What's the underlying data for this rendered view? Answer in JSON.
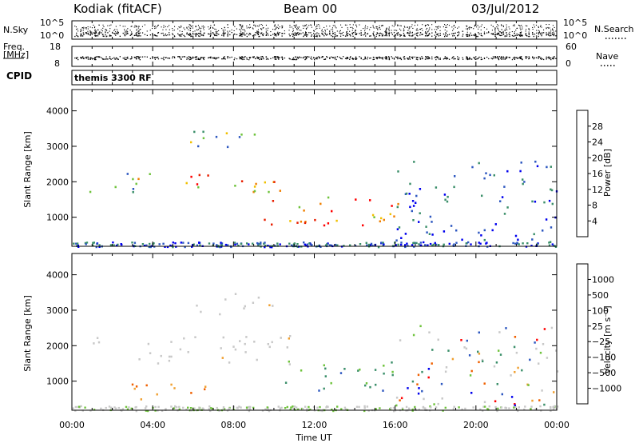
{
  "header": {
    "station": "Kodiak (fitACF)",
    "beam": "Beam 00",
    "date": "03/Jul/2012"
  },
  "noise_panel": {
    "left_label": "N.Sky",
    "right_label": "N.Search",
    "left_ticks": [
      "10^5",
      "10^0"
    ],
    "right_ticks": [
      "10^5",
      "10^0"
    ]
  },
  "freq_panel": {
    "left_label_1": "Freq.",
    "left_label_2": "[MHz]",
    "right_label": "Nave",
    "left_ticks": [
      "18",
      "8"
    ],
    "right_ticks": [
      "60",
      "0"
    ]
  },
  "cpid": {
    "label": "CPID",
    "value": "themis 3300 RF"
  },
  "chart_data": [
    {
      "type": "heatmap",
      "quantity": "Power",
      "ylabel": "Slant Range [km]",
      "xlabel": "",
      "y_ticks": [
        "1000",
        "2000",
        "3000",
        "4000"
      ],
      "ylim": [
        180,
        4600
      ],
      "colorbar_label": "Power [dB]",
      "colorbar_ticks": [
        "4",
        "8",
        "12",
        "16",
        "20",
        "24",
        "28"
      ],
      "colorbar_range": [
        0,
        32
      ],
      "colors": [
        "#0000ee",
        "#2d57c0",
        "#3b8f6a",
        "#6fc33c",
        "#f0c000",
        "#f08000",
        "#e81e00",
        "#ff0000"
      ],
      "echo_regions_hours_km": [
        {
          "t0": 0.8,
          "t1": 3.0,
          "r0": 1700,
          "r1": 2300,
          "level": "mid"
        },
        {
          "t0": 3.0,
          "t1": 7.0,
          "r0": 1800,
          "r1": 2300,
          "level": "high"
        },
        {
          "t0": 7.0,
          "t1": 10.5,
          "r0": 1600,
          "r1": 2300,
          "level": "high"
        },
        {
          "t0": 9.5,
          "t1": 16.5,
          "r0": 700,
          "r1": 1600,
          "level": "high"
        },
        {
          "t0": 5.8,
          "t1": 10.0,
          "r0": 2900,
          "r1": 3500,
          "level": "mid"
        },
        {
          "t0": 16.0,
          "t1": 24.0,
          "r0": 300,
          "r1": 2600,
          "level": "low"
        }
      ]
    },
    {
      "type": "heatmap",
      "quantity": "Velocity",
      "ylabel": "Slant Range [km]",
      "xlabel": "Time UT",
      "y_ticks": [
        "1000",
        "2000",
        "3000",
        "4000"
      ],
      "ylim": [
        180,
        4600
      ],
      "x_ticks": [
        "00:00",
        "04:00",
        "08:00",
        "12:00",
        "16:00",
        "20:00",
        "00:00"
      ],
      "xlim_hours": [
        0,
        24
      ],
      "colorbar_label": "Velocity [m s⁻¹]",
      "colorbar_ticks": [
        "1000",
        "500",
        "100",
        "25",
        "−25",
        "−100",
        "−500",
        "−1000"
      ],
      "colors": [
        "#ff0000",
        "#f06000",
        "#f0a030",
        "#c8c8c8",
        "#c8c8c8",
        "#6fc33c",
        "#3b8f6a",
        "#2d57c0",
        "#0000ee"
      ],
      "echo_regions_hours_km": [
        {
          "t0": 1.0,
          "t1": 11.0,
          "r0": 1500,
          "r1": 2300,
          "level": "ground"
        },
        {
          "t0": 10.5,
          "t1": 16.3,
          "r0": 700,
          "r1": 1600,
          "level": "positive"
        },
        {
          "t0": 2.5,
          "t1": 7.5,
          "r0": 500,
          "r1": 1000,
          "level": "negative"
        },
        {
          "t0": 6.0,
          "t1": 10.0,
          "r0": 2900,
          "r1": 3500,
          "level": "ground"
        },
        {
          "t0": 16.0,
          "t1": 24.0,
          "r0": 300,
          "r1": 2600,
          "level": "mixed"
        }
      ]
    }
  ]
}
